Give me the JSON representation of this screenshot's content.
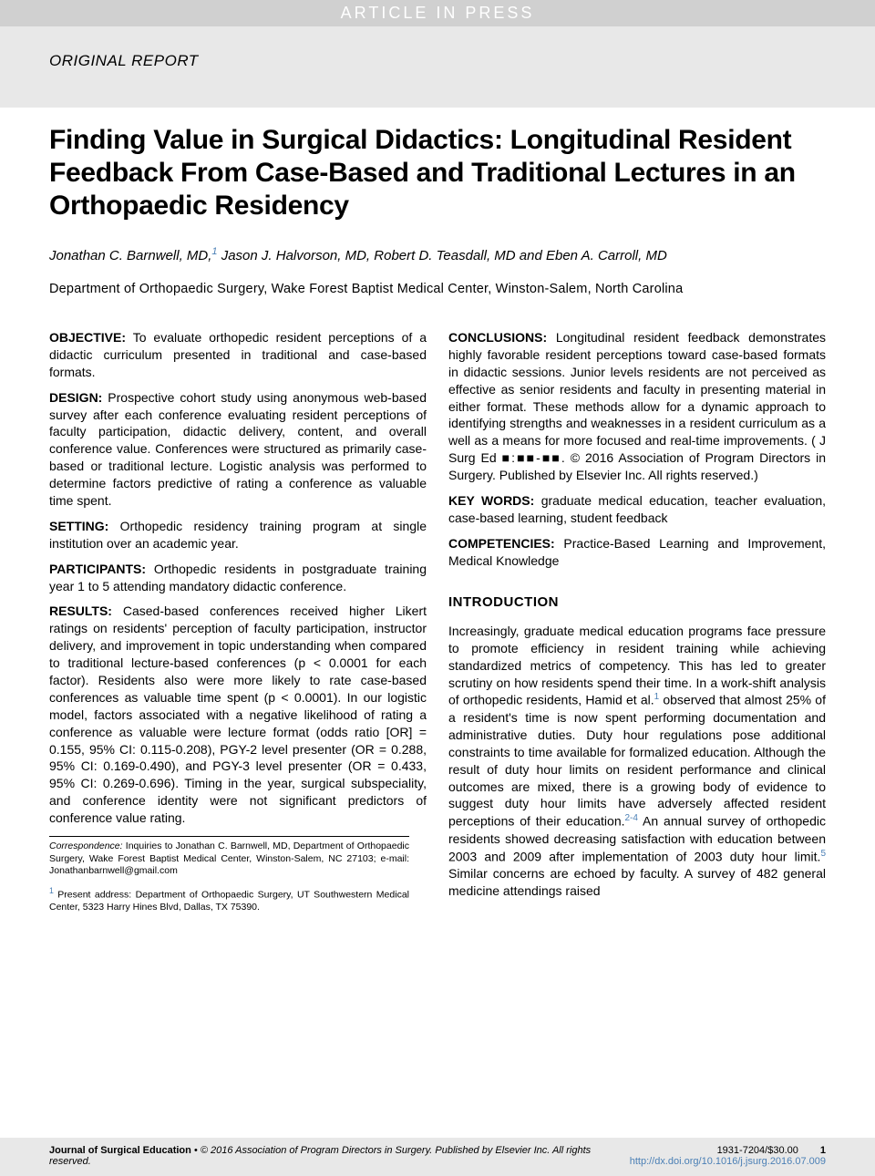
{
  "header": {
    "in_press": "ARTICLE IN PRESS",
    "category": "ORIGINAL REPORT"
  },
  "title": "Finding Value in Surgical Didactics: Longitudinal Resident Feedback From Case-Based and Traditional Lectures in an Orthopaedic Residency",
  "authors_html": "Jonathan C. Barnwell, MD,<sup>1</sup> Jason J. Halvorson, MD, Robert D. Teasdall, MD and Eben A. Carroll, MD",
  "affiliation": "Department of Orthopaedic Surgery, Wake Forest Baptist Medical Center, Winston-Salem, North Carolina",
  "abstract": {
    "objective": {
      "label": "OBJECTIVE:",
      "text": " To evaluate orthopedic resident perceptions of a didactic curriculum presented in traditional and case-based formats."
    },
    "design": {
      "label": "DESIGN:",
      "text": " Prospective cohort study using anonymous web-based survey after each conference evaluating resident perceptions of faculty participation, didactic delivery, content, and overall conference value. Conferences were structured as primarily case-based or traditional lecture. Logistic analysis was performed to determine factors predictive of rating a conference as valuable time spent."
    },
    "setting": {
      "label": "SETTING:",
      "text": " Orthopedic residency training program at single institution over an academic year."
    },
    "participants": {
      "label": "PARTICIPANTS:",
      "text": " Orthopedic residents in postgraduate training year 1 to 5 attending mandatory didactic conference."
    },
    "results": {
      "label": "RESULTS:",
      "text": " Cased-based conferences received higher Likert ratings on residents' perception of faculty participation, instructor delivery, and improvement in topic understanding when compared to traditional lecture-based conferences (p < 0.0001 for each factor). Residents also were more likely to rate case-based conferences as valuable time spent (p < 0.0001). In our logistic model, factors associated with a negative likelihood of rating a conference as valuable were lecture format (odds ratio [OR] = 0.155, 95% CI: 0.115-0.208), PGY-2 level presenter (OR = 0.288, 95% CI: 0.169-0.490), and PGY-3 level presenter (OR = 0.433, 95% CI: 0.269-0.696). Timing in the year, surgical subspeciality, and conference identity were not significant predictors of conference value rating."
    },
    "conclusions": {
      "label": "CONCLUSIONS:",
      "text": " Longitudinal resident feedback demonstrates highly favorable resident perceptions toward case-based formats in didactic sessions. Junior levels residents are not perceived as effective as senior residents and faculty in presenting material in either format. These methods allow for a dynamic approach to identifying strengths and weaknesses in a resident curriculum as a well as a means for more focused and real-time improvements. ( J Surg Ed ■:■■-■■. © 2016 Association of Program Directors in Surgery. Published by Elsevier Inc. All rights reserved.)"
    },
    "keywords": {
      "label": "KEY WORDS:",
      "text": " graduate medical education, teacher evaluation, case-based learning, student feedback"
    },
    "competencies": {
      "label": "COMPETENCIES:",
      "text": " Practice-Based Learning and Improvement, Medical Knowledge"
    }
  },
  "introduction": {
    "heading": "INTRODUCTION",
    "body_html": "Increasingly, graduate medical education programs face pressure to promote efficiency in resident training while achieving standardized metrics of competency. This has led to greater scrutiny on how residents spend their time. In a work-shift analysis of orthopedic residents, Hamid et al.<sup>1</sup> observed that almost 25% of a resident's time is now spent performing documentation and administrative duties. Duty hour regulations pose additional constraints to time available for formalized education. Although the result of duty hour limits on resident performance and clinical outcomes are mixed, there is a growing body of evidence to suggest duty hour limits have adversely affected resident perceptions of their education.<sup>2-4</sup> An annual survey of orthopedic residents showed decreasing satisfaction with education between 2003 and 2009 after implementation of 2003 duty hour limit.<sup>5</sup> Similar concerns are echoed by faculty. A survey of 482 general medicine attendings raised"
  },
  "correspondence": {
    "line1_html": "<span class=\"ital\">Correspondence:</span> Inquiries to Jonathan C. Barnwell, MD, Department of Orthopaedic Surgery, Wake Forest Baptist Medical Center, Winston-Salem, NC 27103; e-mail: Jonathanbarnwell@gmail.com",
    "line2_html": "<sup>1</sup> Present address: Department of Orthopaedic Surgery, UT Southwestern Medical Center, 5323 Harry Hines Blvd, Dallas, TX 75390."
  },
  "footer": {
    "journal": "Journal of Surgical Education",
    "copyright": " • © 2016 Association of Program Directors in Surgery. Published by Elsevier Inc. All rights reserved.",
    "issn_price": "1931-7204/$30.00",
    "doi": "http://dx.doi.org/10.1016/j.jsurg.2016.07.009",
    "page": "1"
  },
  "styles": {
    "banner_bg": "#e8e8e8",
    "inpress_bg": "#d0d0d0",
    "inpress_color": "#ffffff",
    "link_color": "#4a7fb5",
    "title_fontsize": 30,
    "body_fontsize": 14
  }
}
